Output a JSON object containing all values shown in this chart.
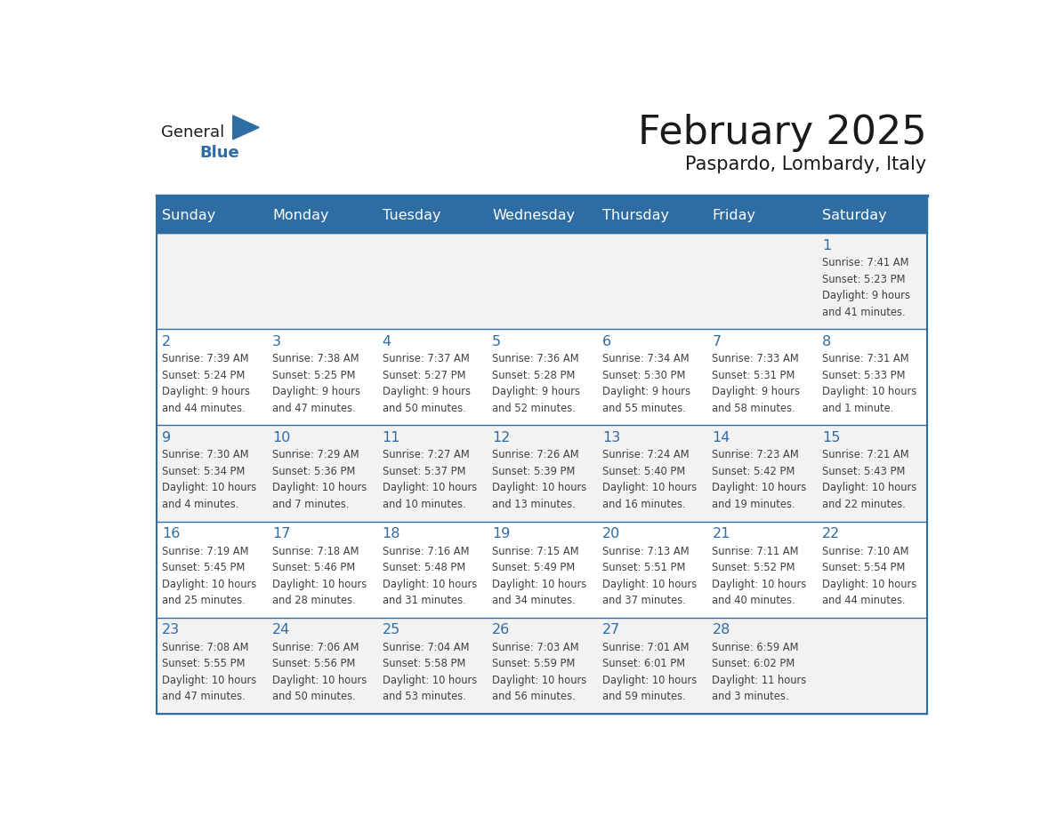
{
  "title": "February 2025",
  "subtitle": "Paspardo, Lombardy, Italy",
  "days_of_week": [
    "Sunday",
    "Monday",
    "Tuesday",
    "Wednesday",
    "Thursday",
    "Friday",
    "Saturday"
  ],
  "header_bg": "#2E6DA4",
  "header_text": "#FFFFFF",
  "cell_bg_light": "#F2F2F2",
  "cell_bg_white": "#FFFFFF",
  "border_color": "#2E6DA4",
  "day_number_color": "#2E6DA4",
  "cell_text_color": "#404040",
  "title_color": "#1a1a1a",
  "subtitle_color": "#1a1a1a",
  "logo_general_color": "#1a1a1a",
  "logo_blue_color": "#2E6DA4",
  "weeks": [
    [
      {
        "day": null,
        "info": null
      },
      {
        "day": null,
        "info": null
      },
      {
        "day": null,
        "info": null
      },
      {
        "day": null,
        "info": null
      },
      {
        "day": null,
        "info": null
      },
      {
        "day": null,
        "info": null
      },
      {
        "day": 1,
        "info": "Sunrise: 7:41 AM\nSunset: 5:23 PM\nDaylight: 9 hours\nand 41 minutes."
      }
    ],
    [
      {
        "day": 2,
        "info": "Sunrise: 7:39 AM\nSunset: 5:24 PM\nDaylight: 9 hours\nand 44 minutes."
      },
      {
        "day": 3,
        "info": "Sunrise: 7:38 AM\nSunset: 5:25 PM\nDaylight: 9 hours\nand 47 minutes."
      },
      {
        "day": 4,
        "info": "Sunrise: 7:37 AM\nSunset: 5:27 PM\nDaylight: 9 hours\nand 50 minutes."
      },
      {
        "day": 5,
        "info": "Sunrise: 7:36 AM\nSunset: 5:28 PM\nDaylight: 9 hours\nand 52 minutes."
      },
      {
        "day": 6,
        "info": "Sunrise: 7:34 AM\nSunset: 5:30 PM\nDaylight: 9 hours\nand 55 minutes."
      },
      {
        "day": 7,
        "info": "Sunrise: 7:33 AM\nSunset: 5:31 PM\nDaylight: 9 hours\nand 58 minutes."
      },
      {
        "day": 8,
        "info": "Sunrise: 7:31 AM\nSunset: 5:33 PM\nDaylight: 10 hours\nand 1 minute."
      }
    ],
    [
      {
        "day": 9,
        "info": "Sunrise: 7:30 AM\nSunset: 5:34 PM\nDaylight: 10 hours\nand 4 minutes."
      },
      {
        "day": 10,
        "info": "Sunrise: 7:29 AM\nSunset: 5:36 PM\nDaylight: 10 hours\nand 7 minutes."
      },
      {
        "day": 11,
        "info": "Sunrise: 7:27 AM\nSunset: 5:37 PM\nDaylight: 10 hours\nand 10 minutes."
      },
      {
        "day": 12,
        "info": "Sunrise: 7:26 AM\nSunset: 5:39 PM\nDaylight: 10 hours\nand 13 minutes."
      },
      {
        "day": 13,
        "info": "Sunrise: 7:24 AM\nSunset: 5:40 PM\nDaylight: 10 hours\nand 16 minutes."
      },
      {
        "day": 14,
        "info": "Sunrise: 7:23 AM\nSunset: 5:42 PM\nDaylight: 10 hours\nand 19 minutes."
      },
      {
        "day": 15,
        "info": "Sunrise: 7:21 AM\nSunset: 5:43 PM\nDaylight: 10 hours\nand 22 minutes."
      }
    ],
    [
      {
        "day": 16,
        "info": "Sunrise: 7:19 AM\nSunset: 5:45 PM\nDaylight: 10 hours\nand 25 minutes."
      },
      {
        "day": 17,
        "info": "Sunrise: 7:18 AM\nSunset: 5:46 PM\nDaylight: 10 hours\nand 28 minutes."
      },
      {
        "day": 18,
        "info": "Sunrise: 7:16 AM\nSunset: 5:48 PM\nDaylight: 10 hours\nand 31 minutes."
      },
      {
        "day": 19,
        "info": "Sunrise: 7:15 AM\nSunset: 5:49 PM\nDaylight: 10 hours\nand 34 minutes."
      },
      {
        "day": 20,
        "info": "Sunrise: 7:13 AM\nSunset: 5:51 PM\nDaylight: 10 hours\nand 37 minutes."
      },
      {
        "day": 21,
        "info": "Sunrise: 7:11 AM\nSunset: 5:52 PM\nDaylight: 10 hours\nand 40 minutes."
      },
      {
        "day": 22,
        "info": "Sunrise: 7:10 AM\nSunset: 5:54 PM\nDaylight: 10 hours\nand 44 minutes."
      }
    ],
    [
      {
        "day": 23,
        "info": "Sunrise: 7:08 AM\nSunset: 5:55 PM\nDaylight: 10 hours\nand 47 minutes."
      },
      {
        "day": 24,
        "info": "Sunrise: 7:06 AM\nSunset: 5:56 PM\nDaylight: 10 hours\nand 50 minutes."
      },
      {
        "day": 25,
        "info": "Sunrise: 7:04 AM\nSunset: 5:58 PM\nDaylight: 10 hours\nand 53 minutes."
      },
      {
        "day": 26,
        "info": "Sunrise: 7:03 AM\nSunset: 5:59 PM\nDaylight: 10 hours\nand 56 minutes."
      },
      {
        "day": 27,
        "info": "Sunrise: 7:01 AM\nSunset: 6:01 PM\nDaylight: 10 hours\nand 59 minutes."
      },
      {
        "day": 28,
        "info": "Sunrise: 6:59 AM\nSunset: 6:02 PM\nDaylight: 11 hours\nand 3 minutes."
      },
      {
        "day": null,
        "info": null
      }
    ]
  ]
}
